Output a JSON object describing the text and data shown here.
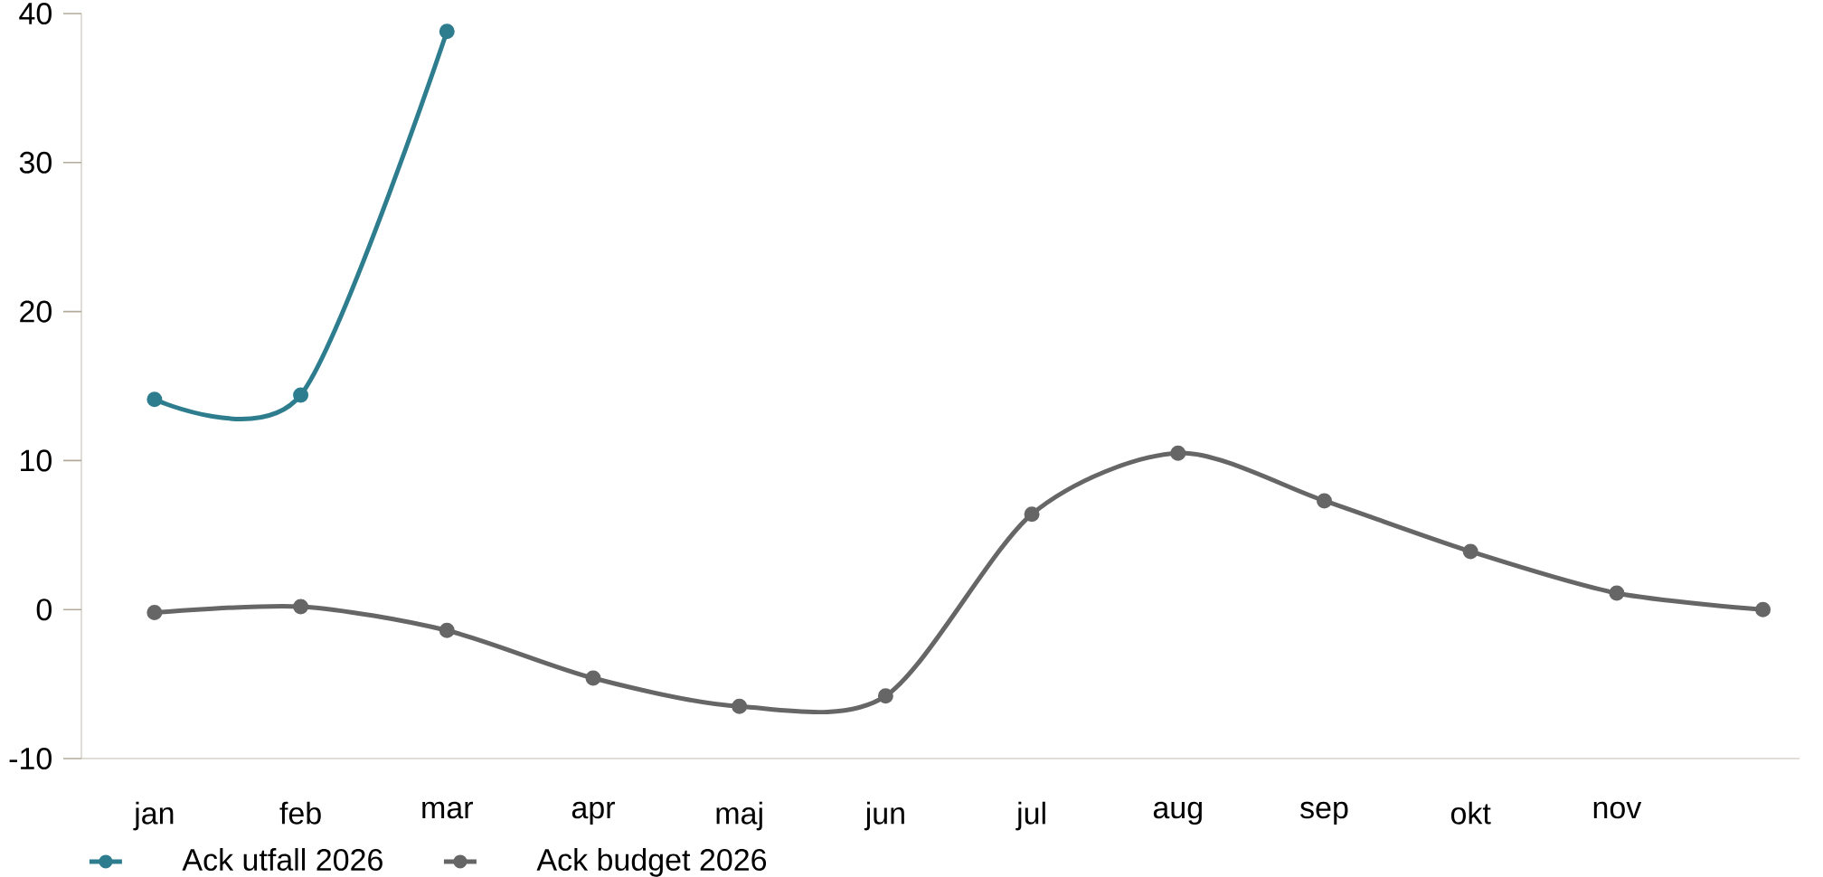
{
  "chart_data": {
    "type": "line",
    "categories": [
      "jan",
      "feb",
      "mar",
      "apr",
      "maj",
      "jun",
      "jul",
      "aug",
      "sep",
      "okt",
      "nov",
      null
    ],
    "series": [
      {
        "name": "Ack utfall 2026",
        "color": "#2e7d8e",
        "values": [
          14.1,
          14.4,
          38.8,
          null,
          null,
          null,
          null,
          null,
          null,
          null,
          null,
          null
        ]
      },
      {
        "name": "Ack budget 2026",
        "color": "#666666",
        "values": [
          -0.2,
          0.2,
          -1.4,
          -4.6,
          -6.5,
          -5.8,
          6.4,
          10.5,
          7.3,
          3.9,
          1.1,
          0.0
        ]
      }
    ],
    "ylim": [
      -10,
      40
    ],
    "yticks": [
      -10,
      0,
      10,
      20,
      30,
      40
    ],
    "grid": false,
    "legend": "bottom left",
    "marker": "circle",
    "line_style": "solid"
  }
}
